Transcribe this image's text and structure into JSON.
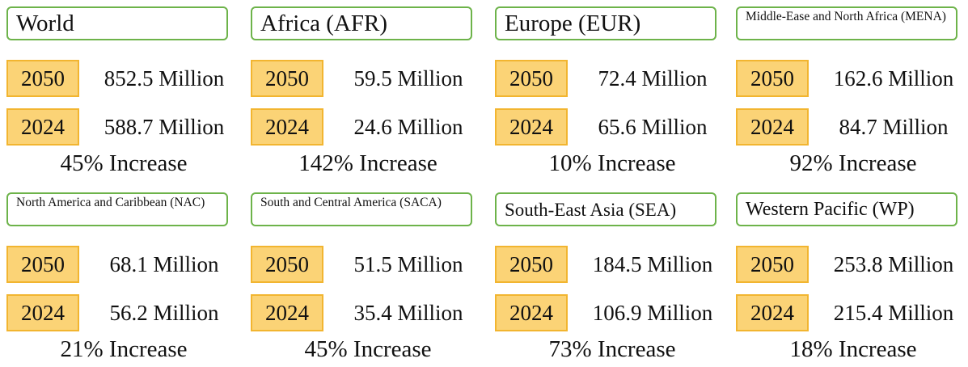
{
  "panels": [
    {
      "region": "World",
      "years": [
        "2050",
        "2024"
      ],
      "values": [
        "852.5 Million",
        "588.7 Million"
      ],
      "increase": "45% Increase",
      "small": false
    },
    {
      "region": "Africa (AFR)",
      "years": [
        "2050",
        "2024"
      ],
      "values": [
        "59.5 Million",
        "24.6 Million"
      ],
      "increase": "142% Increase",
      "small": false
    },
    {
      "region": "Europe (EUR)",
      "years": [
        "2050",
        "2024"
      ],
      "values": [
        "72.4 Million",
        "65.6 Million"
      ],
      "increase": "10% Increase",
      "small": false
    },
    {
      "region": "Middle-Ease and North Africa (MENA)",
      "years": [
        "2050",
        "2024"
      ],
      "values": [
        "162.6 Million",
        "84.7 Million"
      ],
      "increase": "92% Increase",
      "small": true
    },
    {
      "region": "North America and Caribbean (NAC)",
      "years": [
        "2050",
        "2024"
      ],
      "values": [
        "68.1 Million",
        "56.2 Million"
      ],
      "increase": "21% Increase",
      "small": true
    },
    {
      "region": "South and Central America (SACA)",
      "years": [
        "2050",
        "2024"
      ],
      "values": [
        "51.5 Million",
        "35.4 Million"
      ],
      "increase": "45% Increase",
      "small": true
    },
    {
      "region": "South-East Asia (SEA)",
      "years": [
        "2050",
        "2024"
      ],
      "values": [
        "184.5 Million",
        "106.9 Million"
      ],
      "increase": "73% Increase",
      "small": false
    },
    {
      "region": "Western Pacific (WP)",
      "years": [
        "2050",
        "2024"
      ],
      "values": [
        "253.8 Million",
        "215.4 Million"
      ],
      "increase": "18% Increase",
      "small": false
    }
  ],
  "colors": {
    "region_border": "#6db34a",
    "year_fill": "#fbd376",
    "year_border": "#f2b530"
  }
}
